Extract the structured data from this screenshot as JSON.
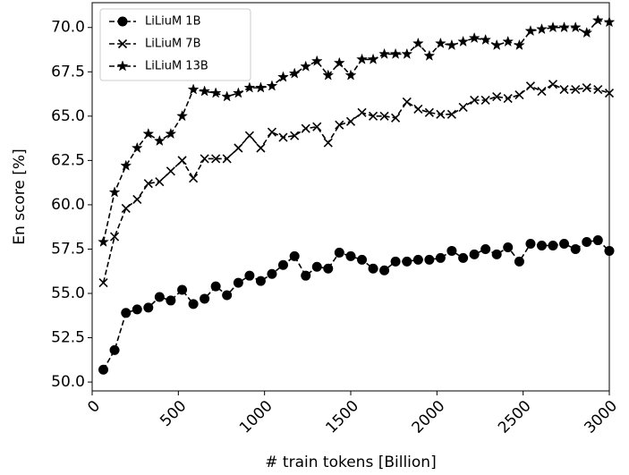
{
  "chart_data": {
    "type": "line",
    "xlabel": "# train tokens [Billion]",
    "ylabel": "En score [%]",
    "x": [
      65,
      130,
      196,
      261,
      326,
      391,
      456,
      522,
      587,
      652,
      717,
      782,
      848,
      913,
      978,
      1043,
      1108,
      1174,
      1239,
      1304,
      1369,
      1434,
      1500,
      1565,
      1630,
      1695,
      1760,
      1826,
      1891,
      1956,
      2021,
      2086,
      2152,
      2217,
      2282,
      2347,
      2412,
      2478,
      2543,
      2608,
      2673,
      2738,
      2804,
      2869,
      2934,
      3000
    ],
    "series": [
      {
        "name": "LiLiuM 1B",
        "color": "#000000",
        "marker": "circle",
        "values": [
          50.7,
          51.8,
          53.9,
          54.1,
          54.2,
          54.8,
          54.6,
          55.2,
          54.4,
          54.7,
          55.4,
          54.9,
          55.6,
          56.0,
          55.7,
          56.1,
          56.6,
          57.1,
          56.0,
          56.5,
          56.4,
          57.3,
          57.1,
          56.9,
          56.4,
          56.3,
          56.8,
          56.8,
          56.9,
          56.9,
          57.0,
          57.4,
          57.0,
          57.2,
          57.5,
          57.2,
          57.6,
          56.8,
          57.8,
          57.7,
          57.7,
          57.8,
          57.5,
          57.9,
          58.0,
          57.4
        ]
      },
      {
        "name": "LiLiuM 7B",
        "color": "#000000",
        "marker": "x",
        "values": [
          55.6,
          58.2,
          59.8,
          60.3,
          61.2,
          61.3,
          61.9,
          62.5,
          61.5,
          62.6,
          62.6,
          62.6,
          63.2,
          63.9,
          63.2,
          64.1,
          63.8,
          63.9,
          64.3,
          64.4,
          63.5,
          64.5,
          64.7,
          65.2,
          65.0,
          65.0,
          64.9,
          65.8,
          65.4,
          65.2,
          65.1,
          65.1,
          65.5,
          65.9,
          65.9,
          66.1,
          66.0,
          66.2,
          66.7,
          66.4,
          66.8,
          66.5,
          66.5,
          66.6,
          66.5,
          66.3
        ]
      },
      {
        "name": "LiLiuM 13B",
        "color": "#000000",
        "marker": "star",
        "values": [
          57.9,
          60.7,
          62.2,
          63.2,
          64.0,
          63.6,
          64.0,
          65.0,
          66.5,
          66.4,
          66.3,
          66.1,
          66.3,
          66.6,
          66.6,
          66.7,
          67.2,
          67.4,
          67.8,
          68.1,
          67.3,
          68.0,
          67.3,
          68.2,
          68.2,
          68.5,
          68.5,
          68.5,
          69.1,
          68.4,
          69.1,
          69.0,
          69.2,
          69.4,
          69.3,
          69.0,
          69.2,
          69.0,
          69.8,
          69.9,
          70.0,
          70.0,
          70.0,
          69.7,
          70.4,
          70.3
        ]
      }
    ],
    "xlim": [
      0,
      3000
    ],
    "xticks": [
      0,
      500,
      1000,
      1500,
      2000,
      2500,
      3000
    ],
    "ylim": [
      49.5,
      71.4
    ],
    "yticks": [
      {
        "value": 50,
        "label": "50.0"
      },
      {
        "value": 52.5,
        "label": "52.5"
      },
      {
        "value": 55,
        "label": "55.0"
      },
      {
        "value": 57.5,
        "label": "57.5"
      },
      {
        "value": 60,
        "label": "60.0"
      },
      {
        "value": 62.5,
        "label": "62.5"
      },
      {
        "value": 65,
        "label": "65.0"
      },
      {
        "value": 67.5,
        "label": "67.5"
      },
      {
        "value": 70,
        "label": "70.0"
      }
    ],
    "linestyle": "dashed",
    "grid": false,
    "legend": "upper left"
  }
}
